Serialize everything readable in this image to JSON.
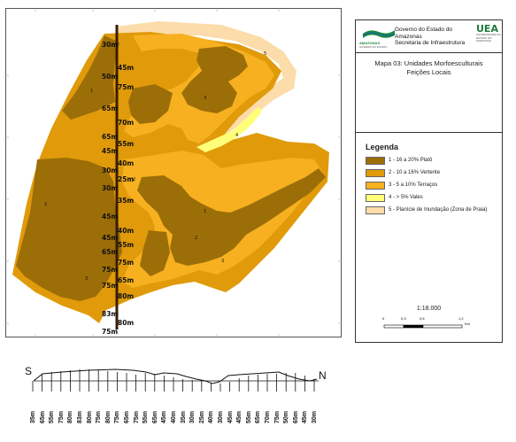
{
  "header": {
    "gov_line1": "Governo do Estado do Amazonas",
    "gov_line2": "Secretaria de Infraestrutura",
    "logo_left": "AMAZONAS",
    "logo_left_sub": "GOVERNO DO ESTADO",
    "uea": "UEA",
    "uea_sub": "UNIVERSIDADE DO ESTADO DO AMAZONAS"
  },
  "map_title_line1": "Mapa 03: Unidades Morfoesculturais",
  "map_title_line2": "Feições Locais",
  "legend": {
    "title": "Legenda",
    "items": [
      {
        "label": "1 - 16 a 20% Platô",
        "color": "#9c6e07"
      },
      {
        "label": "2 - 10 a 16% Vertente",
        "color": "#e09a0a"
      },
      {
        "label": "3 - 5 a 10% Terraços",
        "color": "#f7b020"
      },
      {
        "label": "4 - > 5% Vales",
        "color": "#ffff7a"
      },
      {
        "label": "5 - Planície de Inundação (Zona de Praia)",
        "color": "#fcdcaa"
      }
    ]
  },
  "scale": {
    "ratio": "1:18.000",
    "ticks": [
      "0",
      "0,3",
      "0,6",
      "1,2"
    ],
    "unit": "Km"
  },
  "transect_labels": [
    "30m",
    "45m",
    "50m",
    "75m",
    "65m",
    "70m",
    "65m",
    "55m",
    "45m",
    "40m",
    "30m",
    "25m",
    "30m",
    "35m",
    "45m",
    "40m",
    "45m",
    "55m",
    "65m",
    "75m",
    "75m",
    "65m",
    "75m",
    "80m",
    "83m",
    "80m",
    "75m",
    "65m",
    "55m",
    "35m"
  ],
  "unit_numbers": [
    "1",
    "2",
    "3",
    "3",
    "4",
    "5",
    "1",
    "2",
    "2",
    "3",
    "1"
  ],
  "profile": {
    "start": "S",
    "end": "N",
    "labels": [
      "35m",
      "65m",
      "55m",
      "75m",
      "80m",
      "83m",
      "80m",
      "75m",
      "80m",
      "75m",
      "65m",
      "75m",
      "55m",
      "65m",
      "45m",
      "40m",
      "35m",
      "30m",
      "25m",
      "40m",
      "30m",
      "45m",
      "45m",
      "55m",
      "65m",
      "70m",
      "75m",
      "50m",
      "65m",
      "45m",
      "30m"
    ]
  },
  "colors": {
    "plato": "#9c6e07",
    "vertente": "#e09a0a",
    "terraco": "#f7b020",
    "vale": "#ffff7a",
    "planicie": "#fcdcaa"
  }
}
